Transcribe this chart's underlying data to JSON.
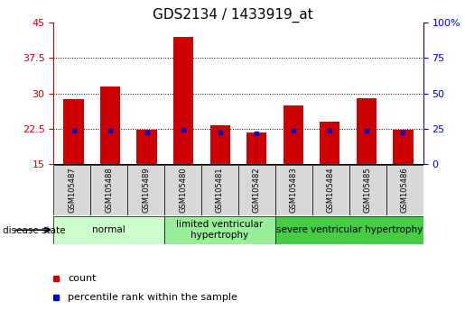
{
  "title": "GDS2134 / 1433919_at",
  "samples": [
    "GSM105487",
    "GSM105488",
    "GSM105489",
    "GSM105480",
    "GSM105481",
    "GSM105482",
    "GSM105483",
    "GSM105484",
    "GSM105485",
    "GSM105486"
  ],
  "count_values": [
    28.8,
    31.5,
    22.3,
    42.0,
    23.3,
    21.8,
    27.5,
    24.0,
    29.0,
    22.3
  ],
  "percentile_values": [
    23.5,
    24.0,
    22.3,
    24.5,
    22.1,
    21.9,
    23.8,
    23.5,
    24.0,
    22.3
  ],
  "ylim_left": [
    15,
    45
  ],
  "ylim_right": [
    0,
    100
  ],
  "yticks_left": [
    15,
    22.5,
    30,
    37.5,
    45
  ],
  "yticks_right": [
    0,
    25,
    50,
    75,
    100
  ],
  "bar_color": "#cc0000",
  "marker_color": "#0000cc",
  "grid_ticks": [
    22.5,
    30,
    37.5
  ],
  "disease_groups": [
    {
      "label": "normal",
      "span": [
        0,
        3
      ],
      "color": "#ccffcc"
    },
    {
      "label": "limited ventricular\nhypertrophy",
      "span": [
        3,
        6
      ],
      "color": "#99ee99"
    },
    {
      "label": "severe ventricular hypertrophy",
      "span": [
        6,
        10
      ],
      "color": "#44cc44"
    }
  ],
  "legend_items": [
    {
      "label": "count",
      "color": "#cc0000"
    },
    {
      "label": "percentile rank within the sample",
      "color": "#0000cc"
    }
  ],
  "disease_state_label": "disease state",
  "background_color": "#ffffff",
  "bar_width": 0.55,
  "title_fontsize": 11,
  "tick_fontsize": 8,
  "sample_fontsize": 6,
  "group_fontsize": 7.5,
  "legend_fontsize": 8
}
